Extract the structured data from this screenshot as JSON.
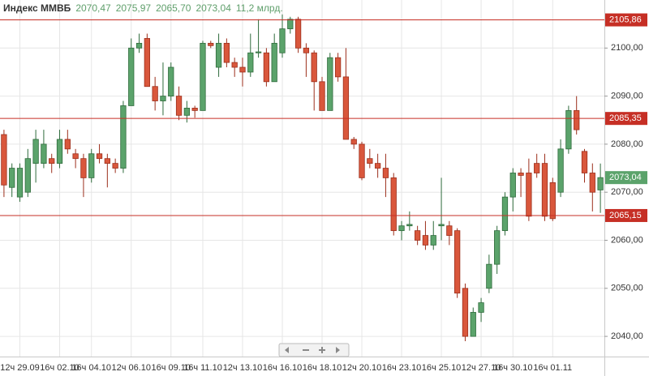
{
  "chart_data": {
    "type": "candlestick",
    "title": "Индекс ММВБ",
    "quote": [
      {
        "value": 2070.47,
        "label": "2070,47"
      },
      {
        "value": 2075.97,
        "label": "2075,97"
      },
      {
        "value": 2065.7,
        "label": "2065,70"
      },
      {
        "value": 2073.04,
        "label": "2073,04"
      }
    ],
    "volume": "11,2 млрд.",
    "categories": [
      null,
      null,
      "12ч 29.09",
      null,
      null,
      null,
      null,
      "16ч 02.10",
      null,
      null,
      null,
      "16ч 04.10",
      null,
      null,
      null,
      null,
      "12ч 06.10",
      null,
      null,
      null,
      null,
      "16ч 09.10",
      null,
      null,
      null,
      "16ч 11.10",
      null,
      null,
      null,
      null,
      "12ч 13.10",
      null,
      null,
      null,
      null,
      "16ч 16.10",
      null,
      null,
      null,
      null,
      "16ч 18.10",
      null,
      null,
      null,
      null,
      "12ч 20.10",
      null,
      null,
      null,
      null,
      "16ч 23.10",
      null,
      null,
      null,
      null,
      "16ч 25.10",
      null,
      null,
      null,
      null,
      "12ч 27.10",
      null,
      null,
      null,
      "16ч 30.10",
      null,
      null,
      null,
      null,
      "16ч 01.11",
      null,
      null,
      null,
      null,
      null,
      null
    ],
    "open": [
      2082,
      2071,
      2069,
      2070,
      2076,
      2076,
      2077,
      2076,
      2081,
      2078,
      2077,
      2073,
      2078,
      2077,
      2076,
      2075,
      2088,
      2100,
      2102,
      2092,
      2089,
      2090,
      2090,
      2086,
      2087.5,
      2087,
      2101,
      2096,
      2101,
      2097,
      2096,
      2095,
      2099,
      2099,
      2093,
      2099,
      2104,
      2106,
      2100,
      2099,
      2093,
      2087,
      2098,
      2094,
      2081,
      2080,
      2077,
      2076,
      2075,
      2073,
      2062,
      2063,
      2062,
      2061,
      2059,
      2063,
      2063,
      2062,
      2050,
      2040,
      2045,
      2050,
      2055,
      2062,
      2069,
      2074,
      2074,
      2076,
      2076,
      2072,
      2070,
      2079,
      2087,
      2078.5,
      2074,
      2070.47
    ],
    "high": [
      2083,
      2076,
      2076,
      2079,
      2083,
      2083,
      2078,
      2083,
      2083,
      2079,
      2078,
      2079,
      2080,
      2078,
      2077,
      2089,
      2102,
      2103,
      2103,
      2094,
      2097,
      2097,
      2092,
      2089,
      2088,
      2101.5,
      2101.5,
      2103,
      2102,
      2098,
      2098,
      2103,
      2106,
      2100,
      2103,
      2107,
      2106.5,
      2106.5,
      2101,
      2099.5,
      2094,
      2099,
      2099,
      2100,
      2081.5,
      2080.5,
      2079,
      2078,
      2078,
      2074,
      2064,
      2066,
      2063,
      2064,
      2064,
      2073,
      2064,
      2062.5,
      2051,
      2046,
      2048,
      2057,
      2063,
      2070,
      2075,
      2075,
      2077,
      2078,
      2078,
      2073,
      2081,
      2088,
      2090,
      2079,
      2076,
      2075.97
    ],
    "low": [
      2069,
      2069,
      2068,
      2069,
      2072,
      2075,
      2074,
      2075,
      2078,
      2075,
      2069,
      2072,
      2076,
      2071,
      2074,
      2074,
      2088,
      2099,
      2092,
      2087,
      2086,
      2089,
      2085,
      2084.5,
      2085.5,
      2087,
      2100,
      2094,
      2096,
      2094,
      2092,
      2094,
      2098,
      2092,
      2093,
      2098,
      2103,
      2099,
      2094,
      2087,
      2087,
      2087,
      2093,
      2081,
      2079,
      2072.5,
      2075,
      2073,
      2069,
      2061,
      2060,
      2062,
      2059,
      2058,
      2058,
      2060,
      2059,
      2048,
      2039,
      2040,
      2043,
      2049,
      2053,
      2061,
      2066,
      2069,
      2064,
      2073,
      2064,
      2064,
      2069,
      2078,
      2082,
      2072,
      2066,
      2065.7
    ],
    "close": [
      2071.5,
      2075,
      2075,
      2077,
      2081,
      2080,
      2076,
      2081,
      2079,
      2077,
      2073,
      2078,
      2077,
      2076,
      2075,
      2088,
      2100,
      2101,
      2092,
      2089,
      2090,
      2096,
      2086,
      2087.5,
      2087,
      2101,
      2100.5,
      2101,
      2097,
      2096,
      2095,
      2099,
      2099.2,
      2093,
      2101,
      2104,
      2106,
      2100,
      2099,
      2093,
      2087,
      2098,
      2094,
      2081,
      2080,
      2073,
      2076,
      2075,
      2073,
      2062,
      2063,
      2063.3,
      2060,
      2059,
      2061,
      2063.3,
      2061,
      2049,
      2040,
      2045,
      2047,
      2055,
      2062,
      2069,
      2074,
      2073.5,
      2065,
      2074,
      2065,
      2064.5,
      2079,
      2087,
      2083,
      2074,
      2070,
      2073.04
    ],
    "up_color": "#5ba36b",
    "down_color": "#d9573c",
    "ylim": [
      2035.8,
      2110
    ],
    "yticks": [
      {
        "value": 2040,
        "label": "2040,00"
      },
      {
        "value": 2050,
        "label": "2050,00"
      },
      {
        "value": 2060,
        "label": "2060,00"
      },
      {
        "value": 2070,
        "label": "2070,00"
      },
      {
        "value": 2080,
        "label": "2080,00"
      },
      {
        "value": 2090,
        "label": "2090,00"
      },
      {
        "value": 2100,
        "label": "2100,00"
      }
    ],
    "grid": true,
    "levels": [
      {
        "value": 2105.86,
        "label": "2105,86"
      },
      {
        "value": 2085.35,
        "label": "2085,35"
      },
      {
        "value": 2065.15,
        "label": "2065,15"
      }
    ],
    "level_color": "#c62f25",
    "last_price": {
      "value": 2073.04,
      "label": "2073,04"
    },
    "last_price_color": "#5ba36b"
  }
}
